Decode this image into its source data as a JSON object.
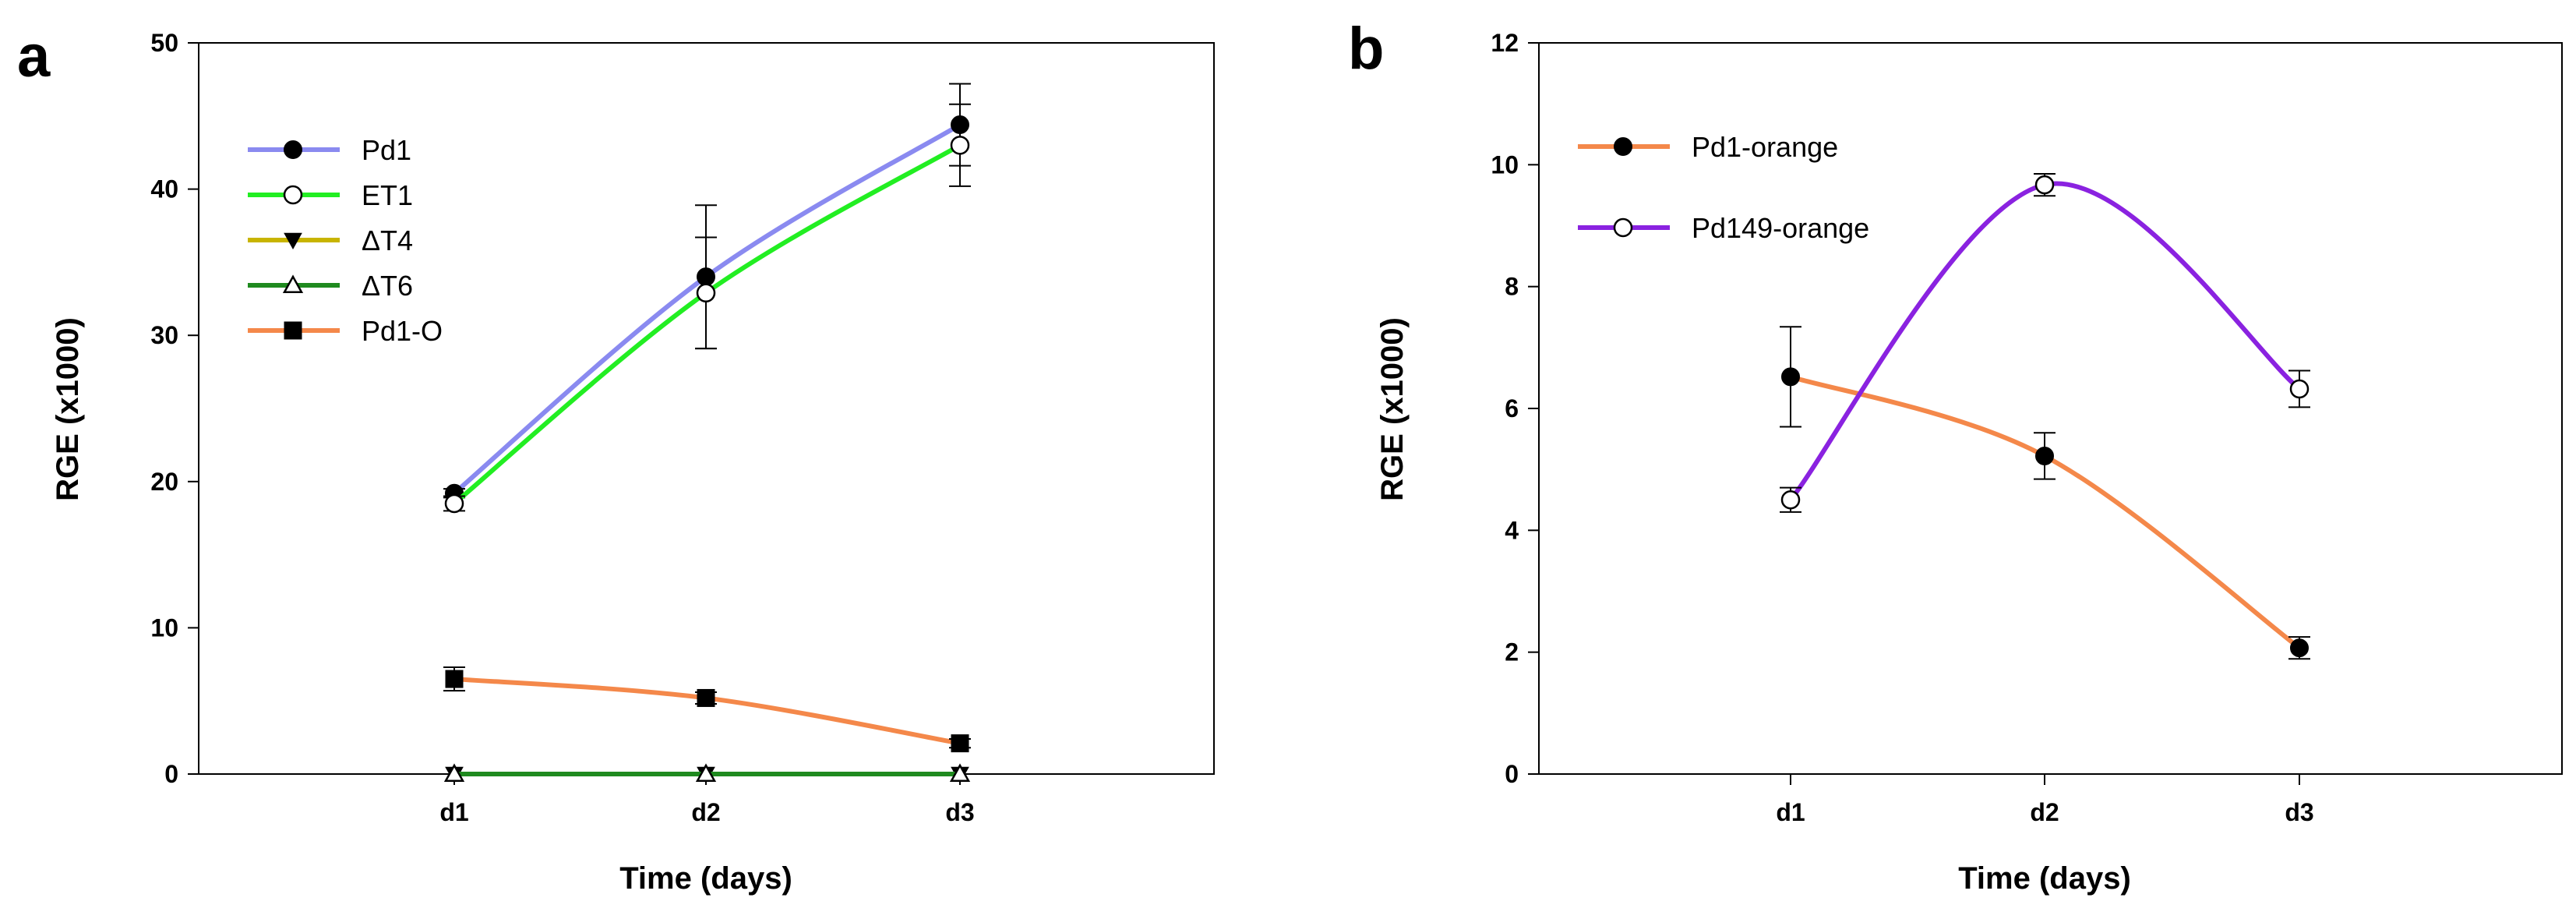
{
  "chart_data": [
    {
      "panel_label": "a",
      "type": "line",
      "xlabel": "Time (days)",
      "ylabel": "RGE (x1000)",
      "categories": [
        "d1",
        "d2",
        "d3"
      ],
      "ylim": [
        0,
        50
      ],
      "yticks": [
        0,
        10,
        20,
        30,
        40,
        50
      ],
      "legend_position": "top-left",
      "series": [
        {
          "name": "Pd1",
          "values": [
            19.2,
            34.0,
            44.4
          ],
          "errors": [
            0.3,
            4.9,
            2.8
          ],
          "line_color": "#8a8af0",
          "marker": "filled-circle"
        },
        {
          "name": "ET1",
          "values": [
            18.5,
            32.9,
            43.0
          ],
          "errors": [
            0.5,
            3.8,
            2.8
          ],
          "line_color": "#22ee22",
          "marker": "open-circle"
        },
        {
          "name": "ΔT4",
          "values": [
            0,
            0,
            0
          ],
          "errors": [
            0,
            0,
            0
          ],
          "line_color": "#c8b400",
          "marker": "filled-triangle-down"
        },
        {
          "name": "ΔT6",
          "values": [
            0,
            0,
            0
          ],
          "errors": [
            0,
            0,
            0
          ],
          "line_color": "#1f8a1f",
          "marker": "open-triangle-up"
        },
        {
          "name": "Pd1-O",
          "values": [
            6.5,
            5.2,
            2.1
          ],
          "errors": [
            0.8,
            0.4,
            0.3
          ],
          "line_color": "#f4884a",
          "marker": "filled-square"
        }
      ]
    },
    {
      "panel_label": "b",
      "type": "line",
      "xlabel": "Time (days)",
      "ylabel": "RGE (x1000)",
      "categories": [
        "d1",
        "d2",
        "d3"
      ],
      "ylim": [
        0,
        12
      ],
      "yticks": [
        0,
        2,
        4,
        6,
        8,
        10,
        12
      ],
      "legend_position": "top-left",
      "series": [
        {
          "name": "Pd1-orange",
          "values": [
            6.52,
            5.22,
            2.07
          ],
          "errors": [
            0.82,
            0.38,
            0.18
          ],
          "line_color": "#f4884a",
          "marker": "filled-circle"
        },
        {
          "name": "Pd149-orange",
          "values": [
            4.5,
            9.67,
            6.32
          ],
          "errors": [
            0.2,
            0.18,
            0.3
          ],
          "line_color": "#8a22e0",
          "marker": "open-circle"
        }
      ]
    }
  ]
}
